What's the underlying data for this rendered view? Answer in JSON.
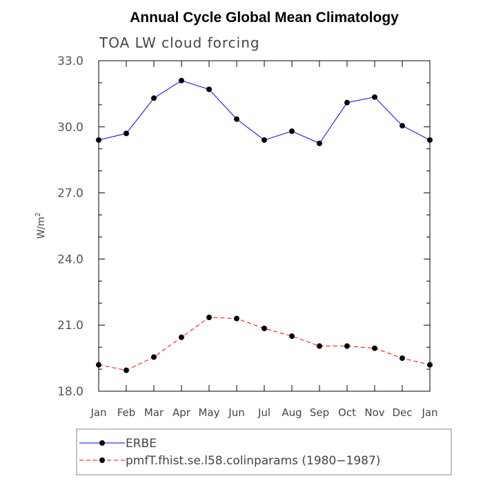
{
  "chart_data": {
    "type": "line",
    "title": "Annual Cycle Global Mean Climatology",
    "subtitle": "TOA LW cloud forcing",
    "ylabel": "W/m",
    "ylabel_superscript": "2",
    "xlabel": "",
    "ylim": [
      18.0,
      33.0
    ],
    "yticks": [
      "18.0",
      "21.0",
      "24.0",
      "27.0",
      "30.0",
      "33.0"
    ],
    "yticks_values": [
      18,
      21,
      24,
      27,
      30,
      33
    ],
    "categories": [
      "Jan",
      "Feb",
      "Mar",
      "Apr",
      "May",
      "Jun",
      "Jul",
      "Aug",
      "Sep",
      "Oct",
      "Nov",
      "Dec",
      "Jan"
    ],
    "series": [
      {
        "name": "ERBE",
        "color": "#0000ff",
        "dash": "solid",
        "values": [
          29.4,
          29.7,
          31.3,
          32.1,
          31.7,
          30.35,
          29.4,
          29.8,
          29.25,
          31.1,
          31.35,
          30.05,
          29.4
        ]
      },
      {
        "name": "pmfT.fhist.se.l58.colinparams (1980-1987)",
        "color": "#ff0000",
        "dash": "dashed",
        "values": [
          19.2,
          18.95,
          19.55,
          20.45,
          21.35,
          21.3,
          20.85,
          20.5,
          20.05,
          20.05,
          19.95,
          19.5,
          19.2
        ]
      }
    ],
    "legend": {
      "position": "bottom",
      "entries": [
        "ERBE",
        "pmfT.fhist.se.l58.colinparams (1980−1987)"
      ]
    },
    "grid": false
  }
}
